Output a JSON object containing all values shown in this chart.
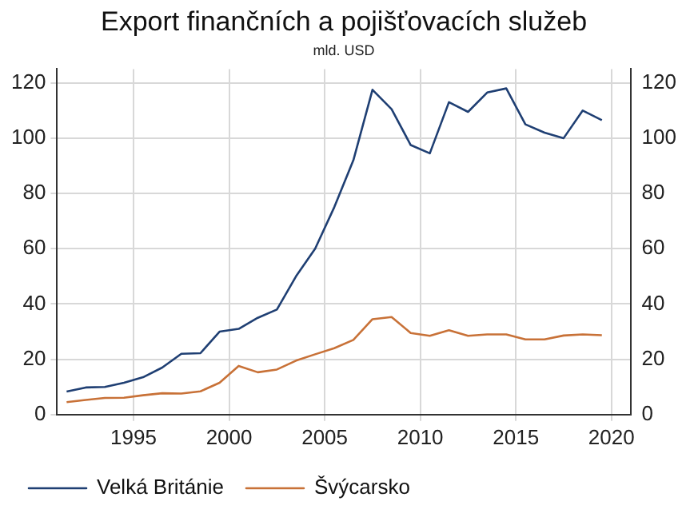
{
  "chart_data": {
    "type": "line",
    "title": "Export finančních a pojišťovacích služeb",
    "subtitle": "mld. USD",
    "x": [
      1991.5,
      1992.5,
      1993.5,
      1994.5,
      1995.5,
      1996.5,
      1997.5,
      1998.5,
      1999.5,
      2000.5,
      2001.5,
      2002.5,
      2003.5,
      2004.5,
      2005.5,
      2006.5,
      2007.5,
      2008.5,
      2009.5,
      2010.5,
      2011.5,
      2012.5,
      2013.5,
      2014.5,
      2015.5,
      2016.5,
      2017.5,
      2018.5,
      2019.5
    ],
    "series": [
      {
        "name": "Velká Británie",
        "color": "#1f3f73",
        "values": [
          8.3,
          9.8,
          10,
          11.5,
          13.5,
          17,
          22,
          22.2,
          30,
          31,
          35,
          38,
          50,
          60,
          75,
          92,
          117.5,
          110.5,
          97.5,
          94.5,
          113,
          109.5,
          116.5,
          118,
          105,
          102,
          100,
          110,
          106.5
        ]
      },
      {
        "name": "Švýcarsko",
        "color": "#c87137",
        "values": [
          4.5,
          5.3,
          6,
          6.1,
          7,
          7.7,
          7.6,
          8.4,
          11.5,
          17.6,
          15.3,
          16.3,
          19.5,
          21.8,
          24,
          27,
          34.5,
          35.3,
          29.5,
          28.5,
          30.5,
          28.5,
          29,
          29,
          27.2,
          27.2,
          28.6,
          29,
          28.7
        ]
      }
    ],
    "xlim": [
      1991,
      2021
    ],
    "xticks": [
      1995,
      2000,
      2005,
      2010,
      2015,
      2020
    ],
    "ylim": [
      0,
      125
    ],
    "yticks": [
      0,
      20,
      40,
      60,
      80,
      100,
      120
    ],
    "y2lim": [
      0,
      125
    ],
    "y2ticks": [
      0,
      20,
      40,
      60,
      80,
      100,
      120
    ],
    "grid": true,
    "legend": "bottom",
    "marker": "none",
    "line_style": "solid"
  }
}
